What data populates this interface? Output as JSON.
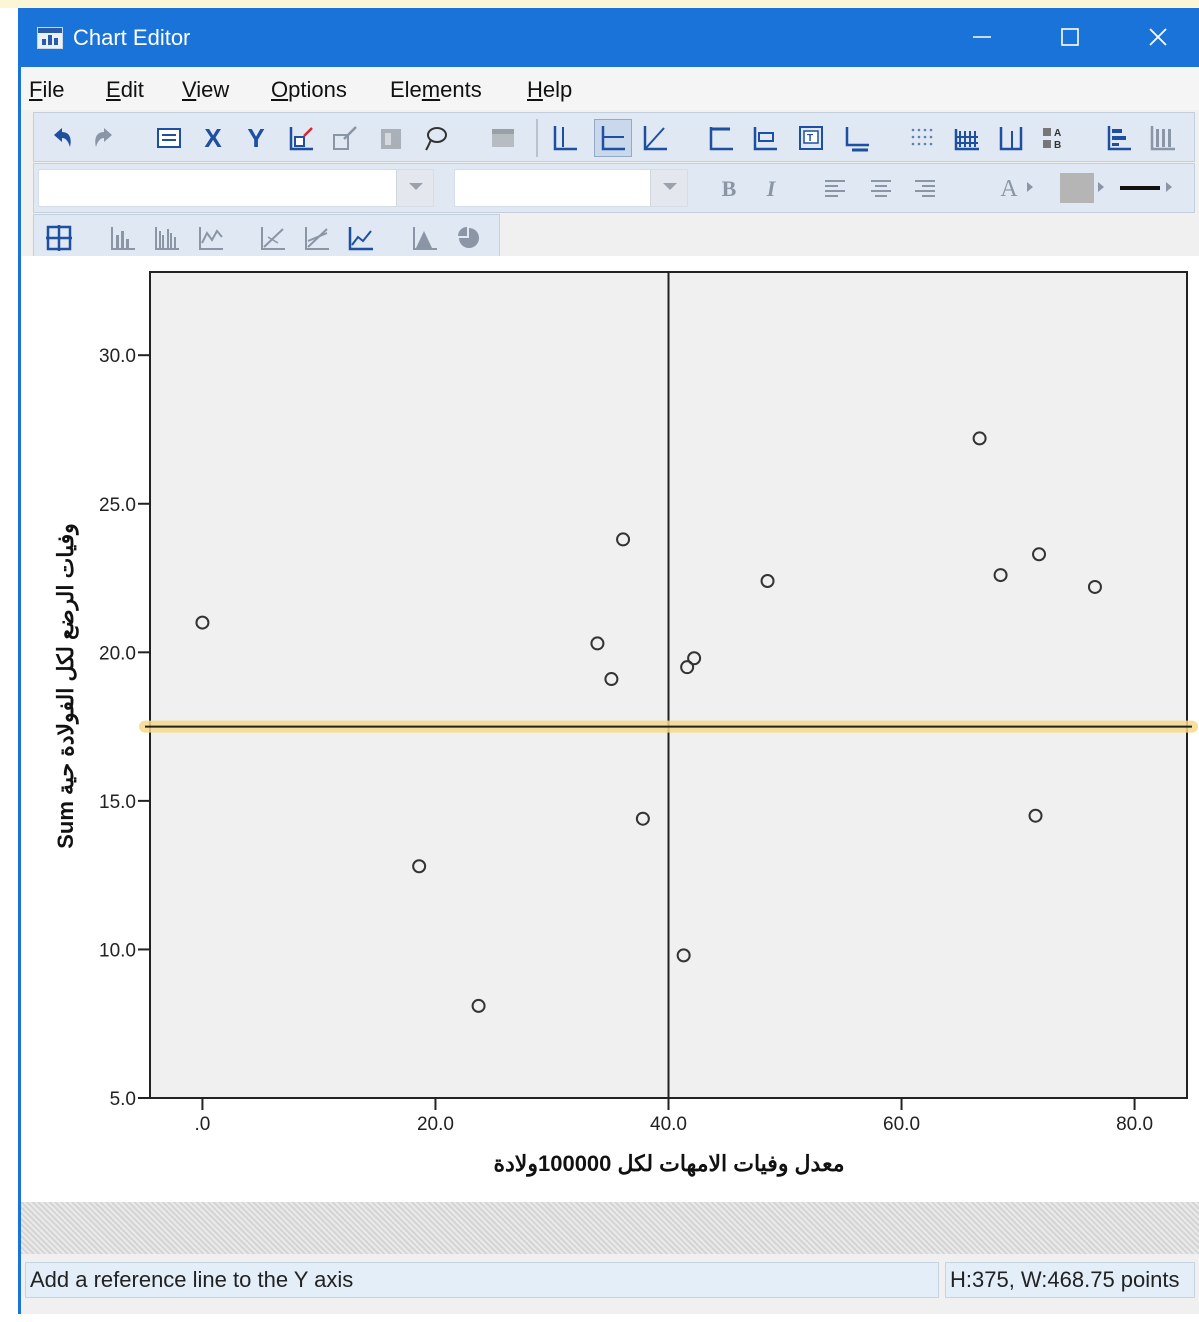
{
  "window": {
    "title": "Chart Editor"
  },
  "menu": [
    {
      "pre": "",
      "u": "F",
      "post": "ile"
    },
    {
      "pre": "",
      "u": "E",
      "post": "dit"
    },
    {
      "pre": "",
      "u": "V",
      "post": "iew"
    },
    {
      "pre": "",
      "u": "O",
      "post": "ptions"
    },
    {
      "pre": "Ele",
      "u": "m",
      "post": "ents"
    },
    {
      "pre": "",
      "u": "H",
      "post": "elp"
    }
  ],
  "toolbar": {
    "x_label": "X",
    "y_label": "Y",
    "bold_label": "B",
    "italic_label": "I",
    "text_color_label": "A"
  },
  "status": {
    "message": "Add a reference line to the Y axis",
    "size": "H:375, W:468.75 points"
  },
  "colors": {
    "titlebar": "#1a73d9",
    "plot_bg": "#f0f0f0",
    "selection_highlight": "#f7d98a"
  },
  "chart_data": {
    "type": "scatter",
    "xlabel": "معدل وفيات الامهات لكل 100000ولادة",
    "ylabel": "Sum وفيات الرضع لكل الفولادة حية",
    "xlim": [
      -4.5,
      84.5
    ],
    "ylim": [
      5.0,
      32.8
    ],
    "x_ticks": [
      0,
      20,
      40,
      60,
      80
    ],
    "x_tick_labels": [
      ".0",
      "20.0",
      "40.0",
      "60.0",
      "80.0"
    ],
    "y_ticks": [
      5,
      10,
      15,
      20,
      25,
      30
    ],
    "y_tick_labels": [
      "5.0",
      "10.0",
      "15.0",
      "20.0",
      "25.0",
      "30.0"
    ],
    "reference_lines": {
      "x": 40.0,
      "y": 17.5
    },
    "grid": false,
    "points": [
      {
        "x": 0.0,
        "y": 21.0
      },
      {
        "x": 18.6,
        "y": 12.8
      },
      {
        "x": 23.7,
        "y": 8.1
      },
      {
        "x": 33.9,
        "y": 20.3
      },
      {
        "x": 35.1,
        "y": 19.1
      },
      {
        "x": 36.1,
        "y": 23.8
      },
      {
        "x": 37.8,
        "y": 14.4
      },
      {
        "x": 41.3,
        "y": 9.8
      },
      {
        "x": 41.6,
        "y": 19.5
      },
      {
        "x": 42.2,
        "y": 19.8
      },
      {
        "x": 48.5,
        "y": 22.4
      },
      {
        "x": 66.7,
        "y": 27.2
      },
      {
        "x": 68.5,
        "y": 22.6
      },
      {
        "x": 71.5,
        "y": 14.5
      },
      {
        "x": 71.8,
        "y": 23.3
      },
      {
        "x": 76.6,
        "y": 22.2
      }
    ]
  }
}
